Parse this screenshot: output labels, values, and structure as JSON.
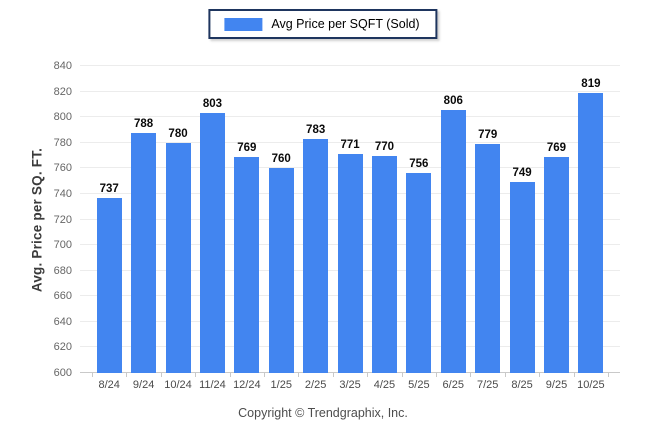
{
  "legend": {
    "label": "Avg Price per SQFT (Sold)"
  },
  "footer": {
    "copyright": "Copyright © Trendgraphix, Inc."
  },
  "colors": {
    "bar": "#4285f0",
    "legend_border": "#1e355e",
    "grid": "#ececec",
    "axis_line": "#c9c9c9"
  },
  "chart_data": {
    "type": "bar",
    "title": "",
    "xlabel": "",
    "ylabel": "Avg. Price per SQ. FT.",
    "categories": [
      "8/24",
      "9/24",
      "10/24",
      "11/24",
      "12/24",
      "1/25",
      "2/25",
      "3/25",
      "4/25",
      "5/25",
      "6/25",
      "7/25",
      "8/25",
      "9/25",
      "10/25"
    ],
    "values": [
      737,
      788,
      780,
      803,
      769,
      760,
      783,
      771,
      770,
      756,
      806,
      779,
      749,
      769,
      819
    ],
    "ylim": [
      600,
      840
    ],
    "ytick_step": 20,
    "grid": true,
    "value_labels": true,
    "legend_entries": [
      "Avg Price per SQFT (Sold)"
    ],
    "legend_position": "top"
  }
}
